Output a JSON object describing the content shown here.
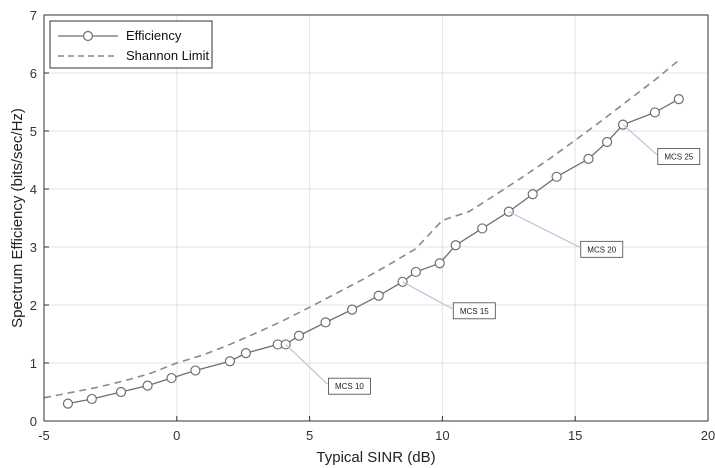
{
  "chart_data": {
    "type": "line",
    "title": "",
    "xlabel": "Typical SINR (dB)",
    "ylabel": "Spectrum Efficiency (bits/sec/Hz)",
    "xlim": [
      -5,
      20
    ],
    "ylim": [
      0,
      7
    ],
    "xticks": [
      "-5",
      "0",
      "5",
      "10",
      "15",
      "20"
    ],
    "yticks": [
      "0",
      "1",
      "2",
      "3",
      "4",
      "5",
      "6",
      "7"
    ],
    "grid": true,
    "legend_position": "top-left",
    "series": [
      {
        "name": "Efficiency",
        "style": "solid-circle-markers",
        "color": "#6f6f6f",
        "x": [
          -4.1,
          -3.2,
          -2.1,
          -1.1,
          -0.2,
          0.7,
          2.0,
          2.6,
          3.8,
          4.1,
          4.6,
          5.6,
          6.6,
          7.6,
          8.5,
          9.0,
          9.9,
          10.5,
          11.5,
          12.5,
          13.4,
          14.3,
          15.5,
          16.2,
          16.8,
          18.0,
          18.9
        ],
        "y": [
          0.3,
          0.38,
          0.5,
          0.61,
          0.74,
          0.87,
          1.03,
          1.17,
          1.32,
          1.32,
          1.47,
          1.7,
          1.92,
          2.16,
          2.4,
          2.57,
          2.72,
          3.03,
          3.32,
          3.61,
          3.91,
          4.21,
          4.52,
          4.81,
          5.11,
          5.32,
          5.55
        ]
      },
      {
        "name": "Shannon Limit",
        "style": "dashed",
        "color": "#8a8a8a",
        "x": [
          -5,
          -4,
          -3,
          -2,
          -1,
          0,
          1,
          2,
          3,
          4,
          5,
          6,
          7,
          8,
          9,
          10,
          11,
          12,
          13,
          14,
          15,
          16,
          17,
          18,
          18.9
        ],
        "y": [
          0.4,
          0.49,
          0.58,
          0.69,
          0.82,
          1.0,
          1.14,
          1.32,
          1.52,
          1.73,
          1.96,
          2.2,
          2.44,
          2.7,
          2.97,
          3.46,
          3.61,
          3.9,
          4.2,
          4.51,
          4.84,
          5.18,
          5.53,
          5.88,
          6.22
        ]
      }
    ],
    "annotations": [
      {
        "label": "MCS 10",
        "x": 4.1,
        "y": 1.32,
        "box_x": 6.5,
        "box_y": 0.6
      },
      {
        "label": "MCS 15",
        "x": 8.5,
        "y": 2.4,
        "box_x": 11.2,
        "box_y": 1.9
      },
      {
        "label": "MCS 20",
        "x": 12.5,
        "y": 3.61,
        "box_x": 16.0,
        "box_y": 2.96
      },
      {
        "label": "MCS 25",
        "x": 16.8,
        "y": 5.11,
        "box_x": 18.9,
        "box_y": 4.56
      }
    ]
  }
}
